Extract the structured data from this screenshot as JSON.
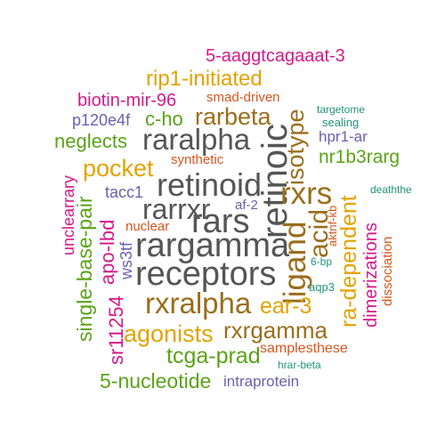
{
  "colors": {
    "gray": "#555555",
    "olive": "#9a6e1c",
    "orange": "#e2a300",
    "magenta": "#d6198a",
    "green": "#5aa317",
    "purple": "#6b5fb0",
    "red_orange": "#d9551e",
    "teal": "#21957a"
  },
  "words": [
    {
      "text": "5-aaggtcagaaat-3",
      "color": "magenta"
    },
    {
      "text": "rip1-initiated",
      "color": "orange"
    },
    {
      "text": "biotin-mir-96",
      "color": "magenta"
    },
    {
      "text": "smad-driven",
      "color": "red_orange"
    },
    {
      "text": "isotype",
      "color": "olive"
    },
    {
      "text": "targetome",
      "color": "teal"
    },
    {
      "text": "p120e4f",
      "color": "purple"
    },
    {
      "text": "c-ho",
      "color": "green"
    },
    {
      "text": "rarbeta",
      "color": "olive"
    },
    {
      "text": "sealing",
      "color": "teal"
    },
    {
      "text": "hpr1-ar",
      "color": "purple"
    },
    {
      "text": "neglects",
      "color": "green"
    },
    {
      "text": "raralpha",
      "color": "gray"
    },
    {
      "text": "retinoic",
      "color": "gray"
    },
    {
      "text": "synthetic",
      "color": "red_orange"
    },
    {
      "text": "nr1b3rarg",
      "color": "green"
    },
    {
      "text": "pocket",
      "color": "orange"
    },
    {
      "text": "unclearrary",
      "color": "magenta"
    },
    {
      "text": "retinoid",
      "color": "gray"
    },
    {
      "text": "rxrs",
      "color": "olive"
    },
    {
      "text": "deaththe",
      "color": "teal"
    },
    {
      "text": "tacc1",
      "color": "purple"
    },
    {
      "text": "rarrxr",
      "color": "gray"
    },
    {
      "text": "af-2",
      "color": "purple"
    },
    {
      "text": "acid",
      "color": "olive"
    },
    {
      "text": "ra-dependent",
      "color": "orange"
    },
    {
      "text": "aktnf-kb",
      "color": "red_orange"
    },
    {
      "text": "single-base-pair",
      "color": "green"
    },
    {
      "text": "apo-lbd",
      "color": "magenta"
    },
    {
      "text": "nuclear",
      "color": "red_orange"
    },
    {
      "text": "rars",
      "color": "gray"
    },
    {
      "text": "dimerizations",
      "color": "magenta"
    },
    {
      "text": "dissociation",
      "color": "red_orange"
    },
    {
      "text": "ws3tf",
      "color": "purple"
    },
    {
      "text": "rargamma",
      "color": "gray"
    },
    {
      "text": "ligand",
      "color": "olive"
    },
    {
      "text": "6-bp",
      "color": "teal"
    },
    {
      "text": "receptors",
      "color": "gray"
    },
    {
      "text": "aqp3",
      "color": "teal"
    },
    {
      "text": "sr11254",
      "color": "magenta"
    },
    {
      "text": "rxralpha",
      "color": "olive"
    },
    {
      "text": "ear-3",
      "color": "orange"
    },
    {
      "text": "agonists",
      "color": "orange"
    },
    {
      "text": "rxrgamma",
      "color": "olive"
    },
    {
      "text": "samplesthese",
      "color": "red_orange"
    },
    {
      "text": "tcga-prad",
      "color": "green"
    },
    {
      "text": "hrar-beta",
      "color": "teal"
    },
    {
      "text": "5-nucleotide",
      "color": "green"
    },
    {
      "text": "intraprotein",
      "color": "purple"
    }
  ]
}
